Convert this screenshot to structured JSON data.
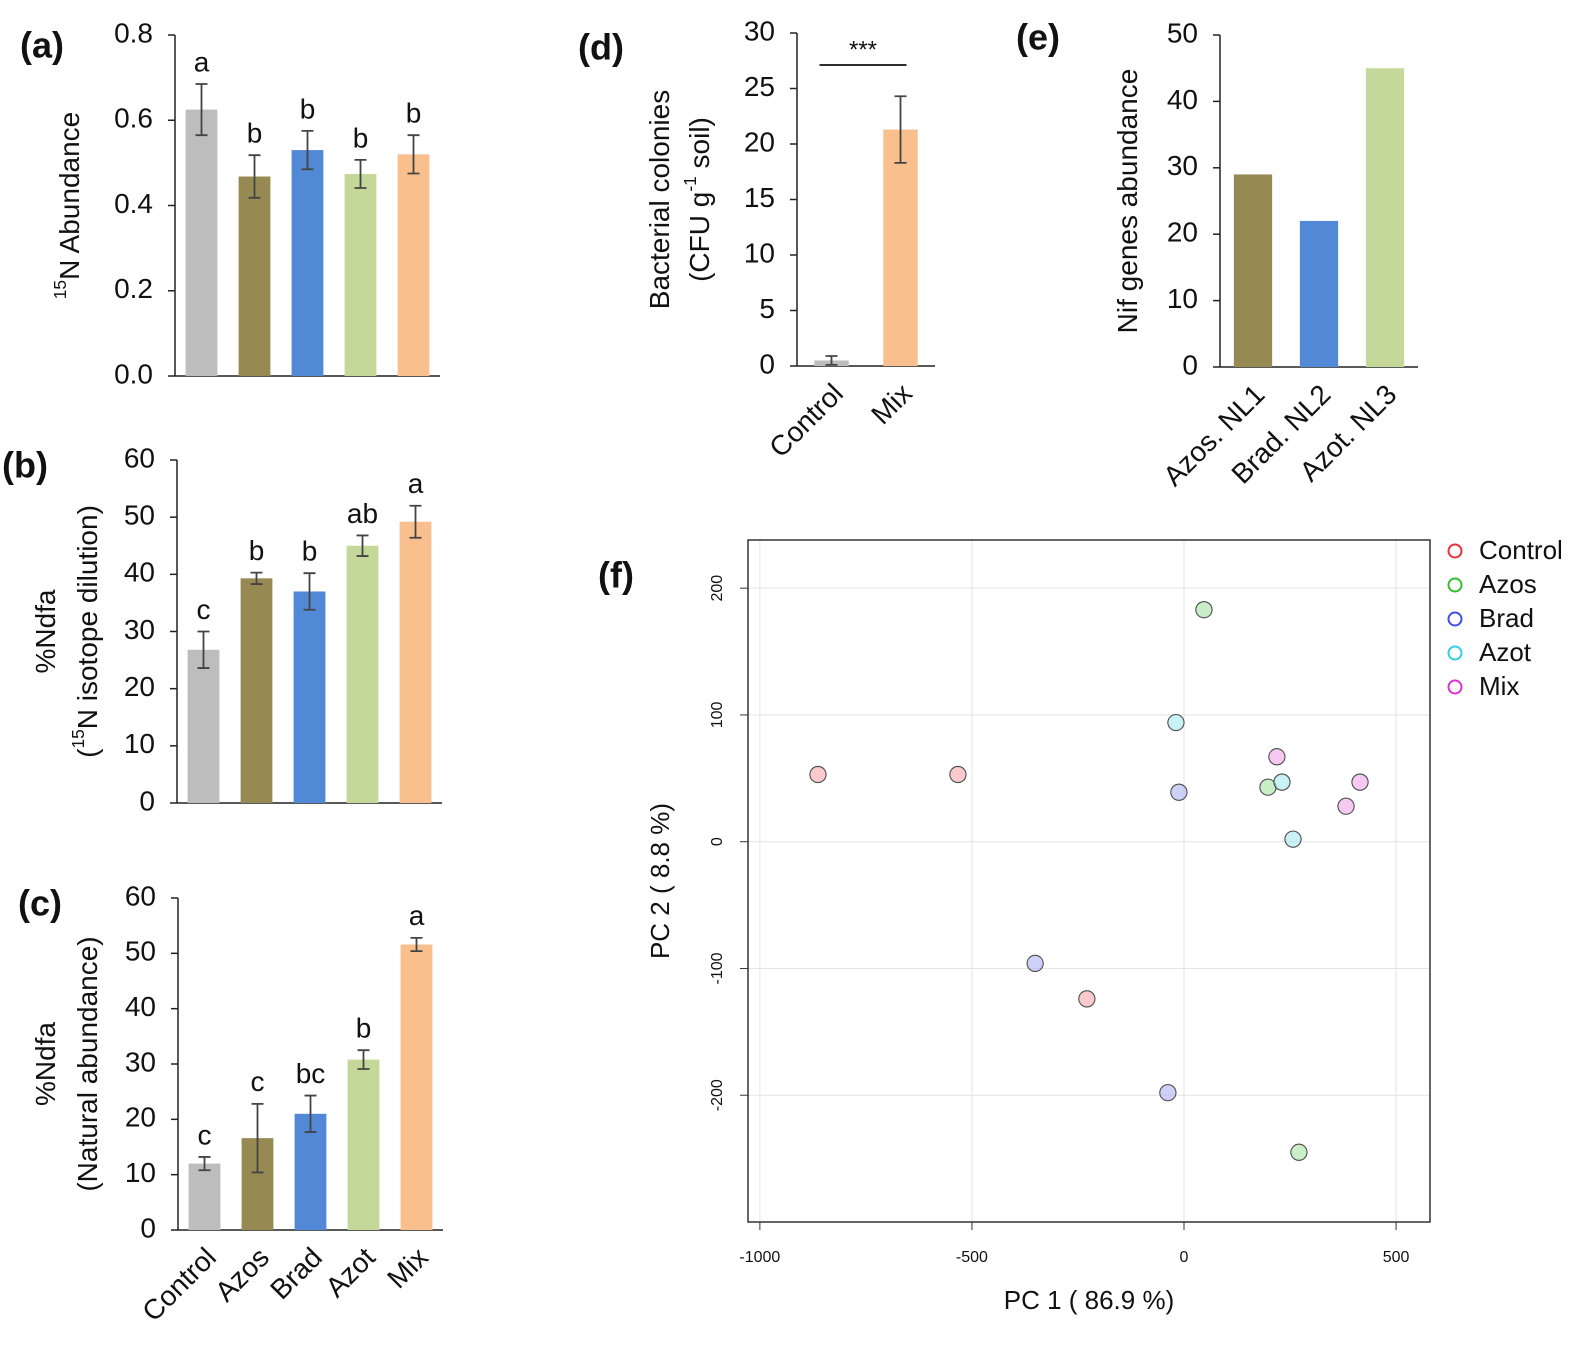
{
  "chart_data": [
    {
      "type": "bar",
      "panel": "(a)",
      "ylabel": [
        [
          {
            "sup": "15"
          },
          {
            "text": "N Abundance"
          }
        ]
      ],
      "values": [
        0.625,
        0.468,
        0.53,
        0.474,
        0.52
      ],
      "errors": [
        0.06,
        0.05,
        0.045,
        0.033,
        0.045
      ],
      "labels": [
        "a",
        "b",
        "b",
        "b",
        "b"
      ],
      "colors": [
        "#bdbdbd",
        "#968a52",
        "#5189d6",
        "#c4d89a",
        "#f9bf8d"
      ],
      "ylim": [
        0,
        0.8
      ],
      "yticks": [
        {
          "value": 0,
          "label": "0.0"
        },
        0.2,
        0.4,
        0.6,
        0.8
      ]
    },
    {
      "type": "bar",
      "panel": "(b)",
      "ylabel": [
        [
          {
            "text": "%Ndfa"
          }
        ],
        [
          {
            "text": "("
          },
          {
            "sup": "15"
          },
          {
            "text": "N isotope dilution)"
          }
        ]
      ],
      "values": [
        26.8,
        39.3,
        37,
        45,
        49.2
      ],
      "errors": [
        3.2,
        1,
        3.2,
        1.8,
        2.8
      ],
      "labels": [
        "c",
        "b",
        "b",
        "ab",
        "a"
      ],
      "colors": [
        "#bdbdbd",
        "#968a52",
        "#5189d6",
        "#c4d89a",
        "#f9bf8d"
      ],
      "ylim": [
        0,
        60
      ],
      "yticks": [
        0,
        10,
        20,
        30,
        40,
        50,
        60
      ]
    },
    {
      "type": "bar",
      "panel": "(c)",
      "ylabel": [
        [
          {
            "text": "%Ndfa"
          }
        ],
        [
          {
            "text": "(Natural abundance)"
          }
        ]
      ],
      "categories": [
        "Control",
        "Azos",
        "Brad",
        "Azot",
        "Mix"
      ],
      "values": [
        12,
        16.6,
        21,
        30.8,
        51.6
      ],
      "errors": [
        1.2,
        6.2,
        3.3,
        1.7,
        1.2
      ],
      "labels": [
        "c",
        "c",
        "bc",
        "b",
        "a"
      ],
      "colors": [
        "#bdbdbd",
        "#968a52",
        "#5189d6",
        "#c4d89a",
        "#f9bf8d"
      ],
      "ylim": [
        0,
        60
      ],
      "yticks": [
        0,
        10,
        20,
        30,
        40,
        50,
        60
      ]
    },
    {
      "type": "bar",
      "panel": "(d)",
      "ylabel": [
        [
          {
            "text": "Bacterial colonies"
          }
        ],
        [
          {
            "text": "(CFU g"
          },
          {
            "sup": "-1"
          },
          {
            "text": " soil)"
          }
        ]
      ],
      "categories": [
        "Control",
        "Mix"
      ],
      "values": [
        0.5,
        21.3
      ],
      "errors": [
        0.4,
        3
      ],
      "colors": [
        "#bdbdbd",
        "#f9bf8d"
      ],
      "annotation": "***",
      "ylim": [
        0,
        30
      ],
      "yticks": [
        0,
        5,
        10,
        15,
        20,
        25,
        30
      ]
    },
    {
      "type": "bar",
      "panel": "(e)",
      "ylabel": [
        [
          {
            "text": "Nif genes abundance"
          }
        ]
      ],
      "categories": [
        "Azos. NL1",
        "Brad. NL2",
        "Azot. NL3"
      ],
      "values": [
        29,
        22,
        45
      ],
      "colors": [
        "#968a52",
        "#5189d6",
        "#c4d89a"
      ],
      "ylim": [
        0,
        50
      ],
      "yticks": [
        0,
        10,
        20,
        30,
        40,
        50
      ]
    },
    {
      "type": "scatter",
      "panel": "(f)",
      "xlabel": "PC 1 ( 86.9 %)",
      "ylabel": [
        [
          {
            "text": "PC 2 ( 8.8 %)"
          }
        ]
      ],
      "xlim": [
        -1028,
        580
      ],
      "ylim": [
        -300,
        238
      ],
      "xticks": [
        -1000,
        -500,
        0,
        500
      ],
      "yticks": [
        -200,
        -100,
        0,
        100,
        200
      ],
      "grid": true,
      "legend": "right",
      "series": [
        {
          "name": "Control",
          "color": "#e8303a",
          "x": [
            -863,
            -533,
            -229
          ],
          "y": [
            53,
            53,
            -124
          ]
        },
        {
          "name": "Azos",
          "color": "#30c030",
          "x": [
            47,
            198,
            271
          ],
          "y": [
            183,
            43,
            -245
          ]
        },
        {
          "name": "Brad",
          "color": "#4050e0",
          "x": [
            -12,
            -351,
            -38
          ],
          "y": [
            39,
            -96,
            -198
          ]
        },
        {
          "name": "Azot",
          "color": "#30d0e0",
          "x": [
            -19,
            231,
            257
          ],
          "y": [
            94,
            47,
            2
          ]
        },
        {
          "name": "Mix",
          "color": "#e030d0",
          "x": [
            219,
            415,
            382
          ],
          "y": [
            67,
            47,
            28
          ]
        }
      ]
    }
  ]
}
